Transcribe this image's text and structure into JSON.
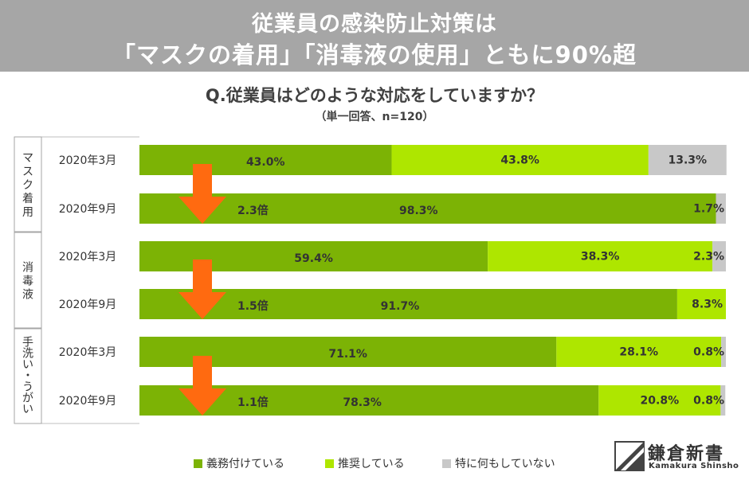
{
  "banner": {
    "line1": "従業員の感染防止対策は",
    "line2": "「マスクの着用」「消毒液の使用」ともに90%超"
  },
  "question": "Q.従業員はどのような対応をしていますか？",
  "note": "（単一回答、n=120）",
  "legend": [
    {
      "label": "義務付けている",
      "color": "#7cb305"
    },
    {
      "label": "推奨している",
      "color": "#aee600"
    },
    {
      "label": "特に何もしていない",
      "color": "#c8c8c8"
    }
  ],
  "logo": {
    "name": "鎌倉新書",
    "sub": "Kamakura Shinsho"
  },
  "chart_data": {
    "type": "bar",
    "orientation": "horizontal-stacked-100",
    "series_colors": [
      "#7cb305",
      "#aee600",
      "#c8c8c8"
    ],
    "arrow_color": "#ff6a10",
    "groups": [
      {
        "label": "マスク着用",
        "rows": [
          {
            "label": "2020年3月",
            "values": [
              43.0,
              43.8,
              13.3
            ],
            "labels": [
              "43.0%",
              "43.8%",
              "13.3%"
            ]
          },
          {
            "label": "2020年9月",
            "values": [
              98.3,
              0,
              1.7
            ],
            "labels": [
              "98.3%",
              "",
              "1.7%"
            ],
            "multiplier": "2.3倍"
          }
        ]
      },
      {
        "label": "消毒液",
        "rows": [
          {
            "label": "2020年3月",
            "values": [
              59.4,
              38.3,
              2.3
            ],
            "labels": [
              "59.4%",
              "38.3%",
              "2.3%"
            ]
          },
          {
            "label": "2020年9月",
            "values": [
              91.7,
              8.3,
              0
            ],
            "labels": [
              "91.7%",
              "8.3%",
              ""
            ],
            "multiplier": "1.5倍"
          }
        ]
      },
      {
        "label": "手洗い・うがい",
        "rows": [
          {
            "label": "2020年3月",
            "values": [
              71.1,
              28.1,
              0.8
            ],
            "labels": [
              "71.1%",
              "28.1%",
              "0.8%"
            ]
          },
          {
            "label": "2020年9月",
            "values": [
              78.3,
              20.8,
              0.8
            ],
            "labels": [
              "78.3%",
              "20.8%",
              "0.8%"
            ],
            "multiplier": "1.1倍"
          }
        ]
      }
    ]
  }
}
